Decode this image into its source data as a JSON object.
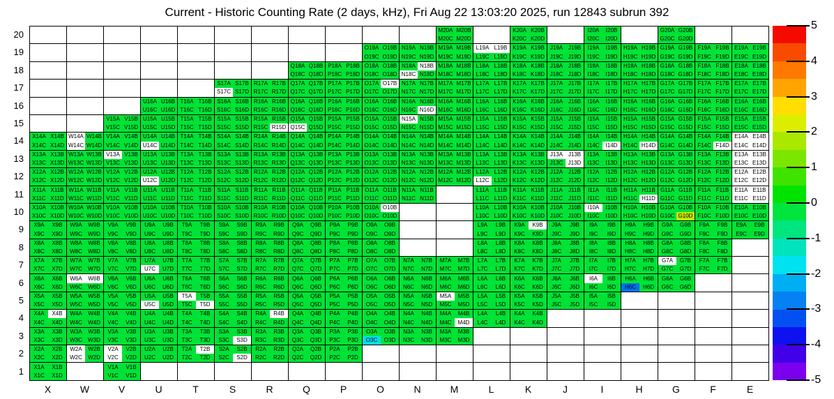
{
  "title": "Current - Historic Counting Rate (2 days, kHz), Fri Aug 22 13:03:20 2025, run 12843 subrun 392",
  "colors": {
    "cell_default": "#00E336",
    "no_fill": "#FFFFFF",
    "grid_line": "#000000",
    "text": "#000000",
    "background": "#FFFFFF"
  },
  "chart_data": {
    "type": "heatmap",
    "title": "Current - Historic Counting Rate (2 days, kHz), Fri Aug 22 13:03:20 2025, run 12843 subrun 392",
    "x_categories": [
      "X",
      "W",
      "V",
      "U",
      "T",
      "S",
      "R",
      "Q",
      "P",
      "O",
      "N",
      "M",
      "L",
      "K",
      "J",
      "I",
      "H",
      "G",
      "F",
      "E"
    ],
    "y_categories": [
      20,
      19,
      18,
      17,
      16,
      15,
      14,
      13,
      12,
      11,
      10,
      9,
      8,
      7,
      6,
      5,
      4,
      3,
      2,
      1
    ],
    "quadrants_per_cell": [
      "A",
      "B",
      "C",
      "D"
    ],
    "cell_label_pattern": "{column}{row}{quadrant}",
    "grid_on": true,
    "legend_position": "right-colorbar",
    "default_value_approx": 0.25,
    "cells_present": {
      "20": [
        "M",
        "K",
        "I",
        "G"
      ],
      "19": [
        "O",
        "N",
        "M",
        "L",
        "K",
        "J",
        "I",
        "H",
        "G",
        "F",
        "E"
      ],
      "18": [
        "Q",
        "P",
        "O",
        "N",
        "M",
        "L",
        "K",
        "J",
        "I",
        "H",
        "G",
        "F",
        "E"
      ],
      "17": [
        "S",
        "R",
        "Q",
        "P",
        "O",
        "N",
        "M",
        "L",
        "K",
        "J",
        "I",
        "H",
        "G",
        "F",
        "E"
      ],
      "16": [
        "U",
        "T",
        "S",
        "R",
        "Q",
        "P",
        "O",
        "N",
        "M",
        "L",
        "K",
        "J",
        "I",
        "H",
        "G",
        "F",
        "E"
      ],
      "15": [
        "V",
        "U",
        "T",
        "S",
        "R",
        "Q",
        "P",
        "O",
        "N",
        "M",
        "L",
        "K",
        "J",
        "I",
        "H",
        "G",
        "F",
        "E"
      ],
      "14": [
        "X",
        "W",
        "V",
        "U",
        "T",
        "S",
        "R",
        "Q",
        "P",
        "O",
        "N",
        "M",
        "L",
        "K",
        "J",
        "I",
        "H",
        "G",
        "F",
        "E"
      ],
      "13": [
        "X",
        "W",
        "V",
        "U",
        "T",
        "S",
        "R",
        "Q",
        "P",
        "O",
        "N",
        "M",
        "L",
        "K",
        "J",
        "I",
        "H",
        "G",
        "F",
        "E"
      ],
      "12": [
        "X",
        "W",
        "V",
        "U",
        "T",
        "S",
        "R",
        "Q",
        "P",
        "O",
        "N",
        "M",
        "L",
        "K",
        "J",
        "I",
        "H",
        "G",
        "F",
        "E"
      ],
      "11": [
        "X",
        "W",
        "V",
        "U",
        "T",
        "S",
        "R",
        "Q",
        "P",
        "O",
        "N",
        "L",
        "K",
        "J",
        "I",
        "H",
        "G",
        "F",
        "E"
      ],
      "10": [
        "X",
        "W",
        "V",
        "U",
        "T",
        "S",
        "R",
        "Q",
        "P",
        "O",
        "L",
        "K",
        "J",
        "I",
        "H",
        "G",
        "F",
        "E"
      ],
      "9": [
        "X",
        "W",
        "V",
        "U",
        "T",
        "S",
        "R",
        "Q",
        "P",
        "O",
        "L",
        "K",
        "J",
        "I",
        "H",
        "G",
        "F",
        "E"
      ],
      "8": [
        "X",
        "W",
        "V",
        "U",
        "T",
        "S",
        "R",
        "Q",
        "P",
        "O",
        "L",
        "K",
        "J",
        "I",
        "H",
        "G",
        "F"
      ],
      "7": [
        "X",
        "W",
        "V",
        "U",
        "T",
        "S",
        "R",
        "Q",
        "P",
        "O",
        "N",
        "M",
        "L",
        "K",
        "J",
        "I",
        "H",
        "G",
        "F"
      ],
      "6": [
        "X",
        "W",
        "V",
        "U",
        "T",
        "S",
        "R",
        "Q",
        "P",
        "O",
        "N",
        "M",
        "L",
        "K",
        "J",
        "I",
        "H",
        "G"
      ],
      "5": [
        "X",
        "W",
        "V",
        "U",
        "T",
        "S",
        "R",
        "Q",
        "P",
        "O",
        "N",
        "M",
        "L",
        "K",
        "J",
        "I"
      ],
      "4": [
        "X",
        "W",
        "V",
        "U",
        "T",
        "S",
        "R",
        "Q",
        "P",
        "O",
        "N",
        "M",
        "L",
        "K"
      ],
      "3": [
        "X",
        "W",
        "V",
        "U",
        "T",
        "S",
        "R",
        "Q",
        "P",
        "O",
        "N",
        "M"
      ],
      "2": [
        "X",
        "W",
        "V",
        "U",
        "T",
        "S",
        "R",
        "Q",
        "P"
      ],
      "1": [
        "X",
        "V"
      ]
    },
    "no_fill_quadrants": [
      "W14A",
      "W14C",
      "V13A",
      "U14C",
      "U12C",
      "L12C",
      "I14D",
      "J13A",
      "J13B",
      "J13D",
      "I10A",
      "K9B",
      "G7A",
      "I6A",
      "W6A",
      "W6B",
      "M5A",
      "M4D",
      "H14D",
      "H11D",
      "F14D",
      "E14A",
      "E14B",
      "E14C",
      "E14D",
      "E13A",
      "E13B",
      "E13C",
      "E13D",
      "E12A",
      "E12B",
      "E12C",
      "E12D",
      "E11A",
      "E11B",
      "E11C",
      "E11D",
      "O10B",
      "X4B",
      "U5C",
      "U7C",
      "T5A",
      "T5D",
      "S3D",
      "S2D",
      "W2A",
      "W2C",
      "V2A",
      "V2C",
      "T2B",
      "R4B",
      "N18B",
      "N18C",
      "L19A",
      "L19B",
      "O17B",
      "S17C",
      "R15D",
      "Q15C",
      "N16D",
      "N15A"
    ],
    "special_quadrants": {
      "O3C": {
        "color": "#00DFEF",
        "value_approx": -1.75
      },
      "H6C": {
        "color": "#0073EF",
        "value_approx": -2.75
      },
      "G10D": {
        "color": "#C3E800",
        "value_approx": 2.25
      }
    },
    "colorbar": {
      "min": -5,
      "max": 5,
      "tick_labels": [
        "5",
        "4",
        "3",
        "2",
        "1",
        "0",
        "-1",
        "-2",
        "-3",
        "-4",
        "-5"
      ],
      "bands_top_to_bottom": [
        "#F50A00",
        "#F94B00",
        "#FF7800",
        "#FFA400",
        "#FFDE00",
        "#DCEE00",
        "#ABE800",
        "#7CE600",
        "#3EE300",
        "#00E300",
        "#00E43E",
        "#00E57D",
        "#00E3BC",
        "#00E2F0",
        "#00AEF4",
        "#0581F4",
        "#0350F2",
        "#0D12EE",
        "#4100E8",
        "#7B00EE"
      ]
    }
  }
}
